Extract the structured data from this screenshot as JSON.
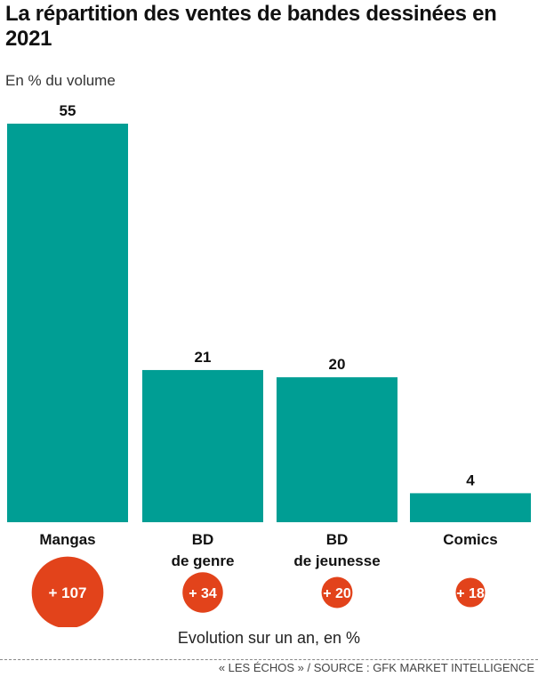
{
  "title": "La répartition des ventes de bandes dessinées en 2021",
  "subtitle": "En % du volume",
  "chart_data": {
    "type": "bar",
    "title": "La répartition des ventes de bandes dessinées en 2021",
    "ylabel": "En % du volume",
    "categories": [
      [
        "Mangas"
      ],
      [
        "BD",
        "de genre"
      ],
      [
        "BD",
        "de jeunesse"
      ],
      [
        "Comics"
      ]
    ],
    "values": [
      55,
      21,
      20,
      4
    ],
    "value_labels": [
      "55",
      "21",
      "20",
      "4"
    ],
    "ylim": [
      0,
      55
    ],
    "grid": false,
    "bar_color": "#009e94",
    "evolution": {
      "label": "Evolution sur un an, en %",
      "values": [
        107,
        34,
        20,
        18
      ],
      "labels": [
        "+ 107",
        "+ 34",
        "+ 20",
        "+ 18"
      ],
      "color": "#e2431b"
    }
  },
  "source": "« LES ÉCHOS » / SOURCE : GFK MARKET INTELLIGENCE"
}
